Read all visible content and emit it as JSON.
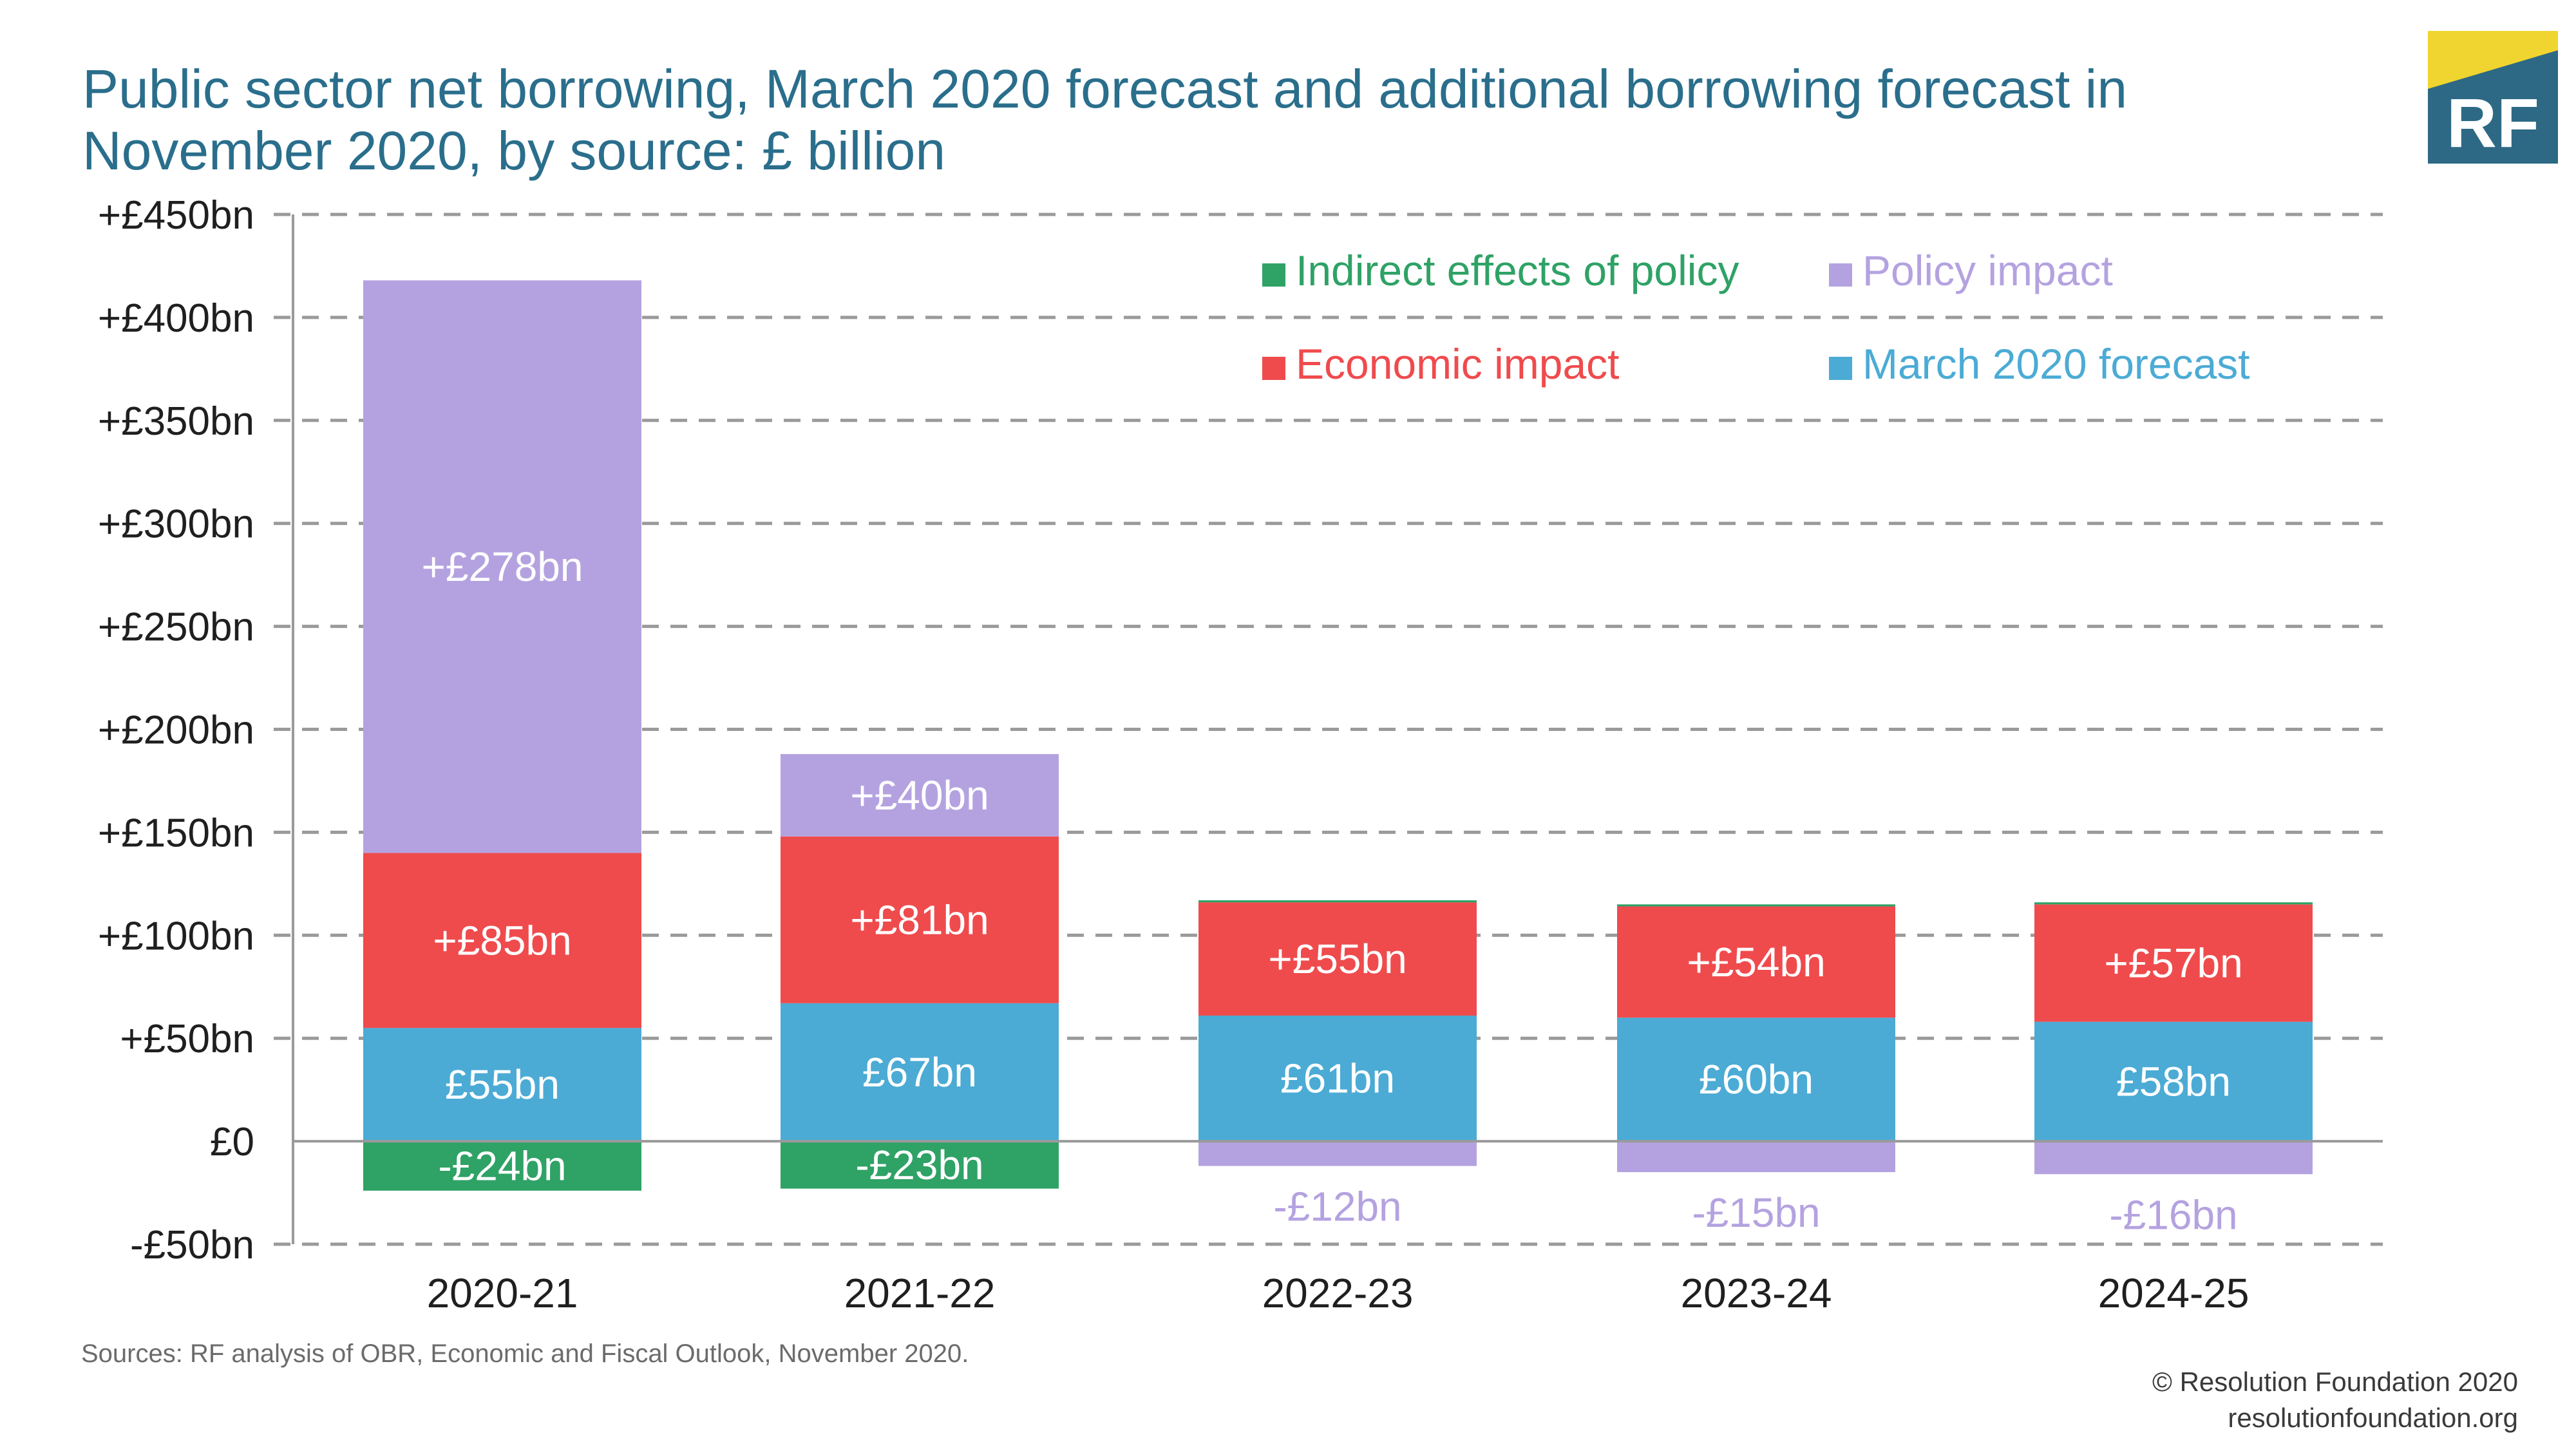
{
  "title_line1": "Public sector net borrowing, March 2020 forecast and additional borrowing forecast in",
  "title_line2": "November 2020, by source: £ billion",
  "logo": {
    "text": "RF",
    "colors": {
      "top": "#f0d430",
      "body": "#2d6985"
    }
  },
  "sources": "Sources: RF analysis of OBR, Economic and Fiscal Outlook, November 2020.",
  "credit_line1": "© Resolution Foundation 2020",
  "credit_line2": "resolutionfoundation.org",
  "chart_data": {
    "type": "bar",
    "stacked": true,
    "categories": [
      "2020-21",
      "2021-22",
      "2022-23",
      "2023-24",
      "2024-25"
    ],
    "ylim": [
      -50,
      450
    ],
    "ytick_values": [
      -50,
      0,
      50,
      100,
      150,
      200,
      250,
      300,
      350,
      400,
      450
    ],
    "yticks": [
      "-£50bn",
      "£0",
      "+£50bn",
      "+£100bn",
      "+£150bn",
      "+£200bn",
      "+£250bn",
      "+£300bn",
      "+£350bn",
      "+£400bn",
      "+£450bn"
    ],
    "grid": true,
    "legend_position": "top-right",
    "series": [
      {
        "name": "March 2020 forecast",
        "color": "#4babd5",
        "label_color": "#ffffff",
        "values": [
          55,
          67,
          61,
          60,
          58
        ],
        "labels": [
          "£55bn",
          "£67bn",
          "£61bn",
          "£60bn",
          "£58bn"
        ]
      },
      {
        "name": "Economic impact",
        "color": "#ef4b4d",
        "label_color": "#ffffff",
        "values": [
          85,
          81,
          55,
          54,
          57
        ],
        "labels": [
          "+£85bn",
          "+£81bn",
          "+£55bn",
          "+£54bn",
          "+£57bn"
        ]
      },
      {
        "name": "Policy impact",
        "color": "#b4a2e0",
        "label_color": "#b4a2e0",
        "values": [
          278,
          40,
          -12,
          -15,
          -16
        ],
        "labels": [
          "+£278bn",
          "+£40bn",
          "-£12bn",
          "-£15bn",
          "-£16bn"
        ]
      },
      {
        "name": "Indirect effects of policy",
        "color": "#2fa266",
        "label_color": "#ffffff",
        "values": [
          -24,
          -23,
          1,
          1,
          1
        ],
        "labels": [
          "-£24bn",
          "-£23bn",
          "",
          "",
          ""
        ]
      }
    ],
    "legend": [
      {
        "name": "Indirect effects of policy",
        "color": "#2fa266"
      },
      {
        "name": "Policy impact",
        "color": "#b4a2e0"
      },
      {
        "name": "Economic impact",
        "color": "#ef4b4d"
      },
      {
        "name": "March 2020 forecast",
        "color": "#4babd5"
      }
    ]
  }
}
